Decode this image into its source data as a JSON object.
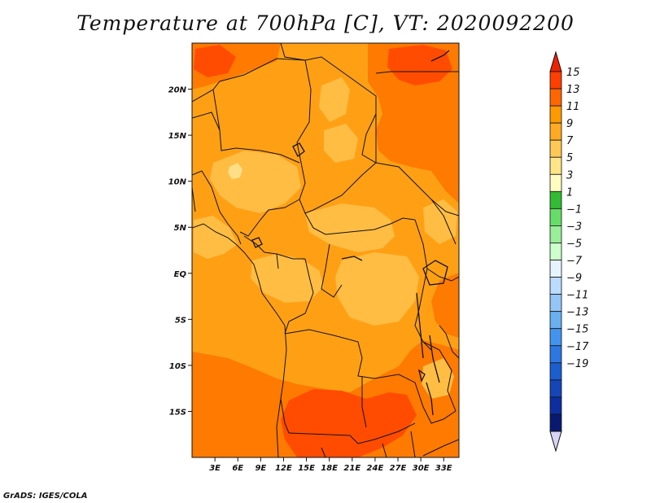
{
  "title": "Temperature at 700hPa [C], VT: 2020092200",
  "credit": "GrADS: IGES/COLA",
  "map": {
    "x_range": [
      0,
      35
    ],
    "y_range": [
      -20,
      25
    ],
    "lat_ticks": [
      {
        "value": 20,
        "label": "20N"
      },
      {
        "value": 15,
        "label": "15N"
      },
      {
        "value": 10,
        "label": "10N"
      },
      {
        "value": 5,
        "label": "5N"
      },
      {
        "value": 0,
        "label": "EQ"
      },
      {
        "value": -5,
        "label": "5S"
      },
      {
        "value": -10,
        "label": "10S"
      },
      {
        "value": -15,
        "label": "15S"
      }
    ],
    "lon_ticks": [
      {
        "value": 3,
        "label": "3E"
      },
      {
        "value": 6,
        "label": "6E"
      },
      {
        "value": 9,
        "label": "9E"
      },
      {
        "value": 12,
        "label": "12E"
      },
      {
        "value": 15,
        "label": "15E"
      },
      {
        "value": 18,
        "label": "18E"
      },
      {
        "value": 21,
        "label": "21E"
      },
      {
        "value": 24,
        "label": "24E"
      },
      {
        "value": 27,
        "label": "27E"
      },
      {
        "value": 30,
        "label": "30E"
      },
      {
        "value": 33,
        "label": "33E"
      }
    ]
  },
  "colorbar": {
    "labels": [
      "15",
      "13",
      "11",
      "9",
      "7",
      "5",
      "3",
      "1",
      "−1",
      "−3",
      "−5",
      "−7",
      "−9",
      "−11",
      "−13",
      "−15",
      "−17",
      "−19"
    ],
    "colors": [
      "#ff3f00",
      "#ff6600",
      "#ff9900",
      "#ffaa22",
      "#ffc855",
      "#ffe488",
      "#fffcbf",
      "#33bb33",
      "#66dd66",
      "#99ee99",
      "#ccffcc",
      "#e6f4ff",
      "#bcdcff",
      "#93c6f6",
      "#6ab0f0",
      "#4294ee",
      "#2a78e0",
      "#1a5ed0",
      "#1446b8",
      "#0c2ea0",
      "#081a70"
    ],
    "top_arrow_color": "#ee2200",
    "bottom_arrow_color": "#d8d4f8"
  },
  "fields": {
    "background": "#ffa014",
    "warm_color": "#ff7a00",
    "hot_color": "#ff4c00",
    "cool_color": "#ffbd44",
    "coolest_color": "#ffde88"
  }
}
